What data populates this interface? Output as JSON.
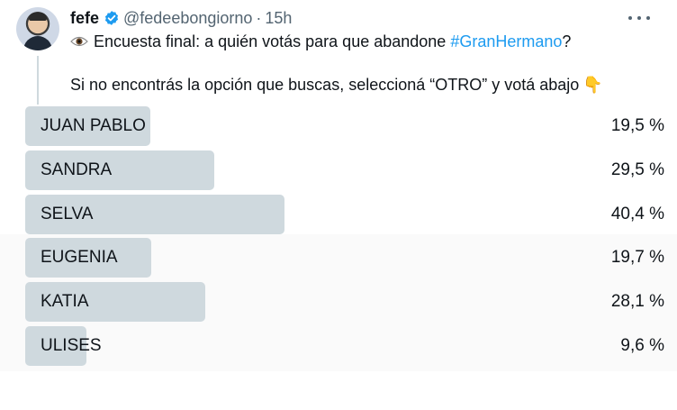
{
  "tweet": {
    "display_name": "fefe",
    "handle": "@fedeebongiorno",
    "separator": "·",
    "time": "15h",
    "line1_text": "Encuesta final: a quién votás para que abandone ",
    "hashtag": "#GranHermano",
    "line1_end": "?",
    "line2_text": "Si no encontrás la opción que buscas, seleccioná “OTRO” y votá abajo",
    "point_emoji": "👇"
  },
  "poll": {
    "options": [
      {
        "label": "JUAN PABLO",
        "percent_text": "19,5 %",
        "percent": 19.5
      },
      {
        "label": "SANDRA",
        "percent_text": "29,5 %",
        "percent": 29.5
      },
      {
        "label": "SELVA",
        "percent_text": "40,4 %",
        "percent": 40.4
      },
      {
        "label": "EUGENIA",
        "percent_text": "19,7 %",
        "percent": 19.7
      },
      {
        "label": "KATIA",
        "percent_text": "28,1 %",
        "percent": 28.1
      },
      {
        "label": "ULISES",
        "percent_text": "9,6 %",
        "percent": 9.6
      }
    ]
  },
  "colors": {
    "bar": "#cfd9de",
    "link": "#1d9bf0",
    "verified": "#1d9bf0"
  }
}
